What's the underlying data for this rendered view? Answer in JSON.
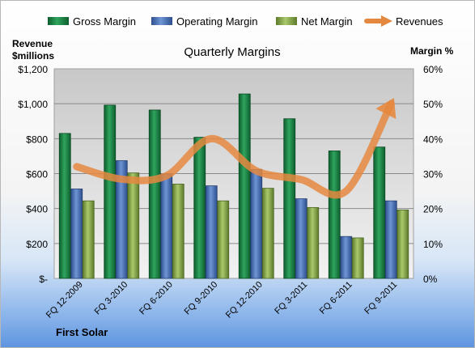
{
  "chart_data": {
    "type": "bar",
    "title": "Quarterly Margins",
    "company_label": "First Solar",
    "y_left_label_line1": "Revenue",
    "y_left_label_line2": "$millions",
    "y_right_label": "Margin %",
    "y_left_range": [
      0,
      1200
    ],
    "y_right_range": [
      0,
      60
    ],
    "y_left_ticks": [
      "$-",
      "$200",
      "$400",
      "$600",
      "$800",
      "$1,000",
      "$1,200"
    ],
    "y_right_ticks": [
      "0%",
      "10%",
      "20%",
      "30%",
      "40%",
      "50%",
      "60%"
    ],
    "categories": [
      "FQ 12-2009",
      "FQ 3-2010",
      "FQ 6-2010",
      "FQ 9-2010",
      "FQ 12-2010",
      "FQ 3-2011",
      "FQ 6-2011",
      "FQ 9-2011"
    ],
    "grid": true,
    "legend_position": "top",
    "series": [
      {
        "name": "Gross Margin",
        "type": "bar",
        "axis": "right",
        "color": "#1f8a4c",
        "values": [
          41.5,
          49.6,
          48.2,
          40.4,
          52.8,
          45.7,
          36.5,
          37.6
        ]
      },
      {
        "name": "Operating Margin",
        "type": "bar",
        "axis": "right",
        "color": "#4a72b8",
        "values": [
          25.6,
          33.7,
          29.9,
          26.5,
          31.2,
          22.8,
          12.0,
          22.2
        ]
      },
      {
        "name": "Net Margin",
        "type": "bar",
        "axis": "right",
        "color": "#8fb04f",
        "values": [
          22.2,
          30.2,
          27.0,
          22.2,
          25.8,
          20.3,
          11.6,
          19.6
        ]
      },
      {
        "name": "Revenues",
        "type": "line",
        "axis": "left",
        "color": "#e5883f",
        "values": [
          640,
          568,
          588,
          800,
          616,
          566,
          500,
          1000
        ]
      }
    ]
  }
}
